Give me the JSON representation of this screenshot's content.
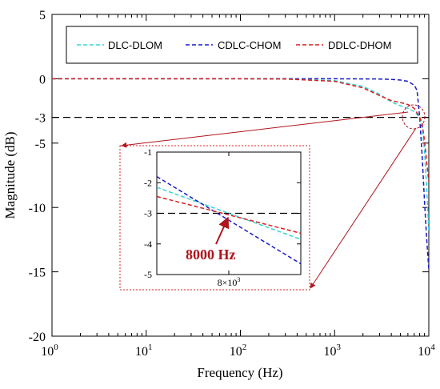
{
  "chart_data": {
    "type": "line",
    "title": "",
    "xlabel": "Frequency (Hz)",
    "ylabel": "Magnitude (dB)",
    "xscale": "log",
    "xlim": [
      1,
      10000
    ],
    "ylim": [
      -20,
      5
    ],
    "x_ticks": [
      1,
      10,
      100,
      1000,
      10000
    ],
    "x_tick_labels": [
      {
        "base": "10",
        "exp": "0"
      },
      {
        "base": "10",
        "exp": "1"
      },
      {
        "base": "10",
        "exp": "2"
      },
      {
        "base": "10",
        "exp": "3"
      },
      {
        "base": "10",
        "exp": "4"
      }
    ],
    "y_ticks": [
      5,
      0,
      -3,
      -5,
      -10,
      -15,
      -20
    ],
    "y_tick_labels": [
      "5",
      "0",
      "-3",
      "-5",
      "-10",
      "-15",
      "-20"
    ],
    "grid": false,
    "legend_position": "top",
    "reference_line": {
      "y": -3,
      "style": "dashed",
      "color": "#000000"
    },
    "series": [
      {
        "name": "DLC-DLOM",
        "color": "#2fd6d6",
        "x": [
          1,
          10,
          100,
          300,
          1000,
          2000,
          3000,
          4000,
          5000,
          6000,
          7000,
          8000,
          8500,
          9000,
          9500,
          10000
        ],
        "y": [
          0,
          0,
          0,
          -0.02,
          -0.15,
          -0.6,
          -1.2,
          -1.8,
          -2.1,
          -2.3,
          -2.55,
          -3.0,
          -3.8,
          -5.5,
          -8.5,
          -11.8
        ]
      },
      {
        "name": "CDLC-CHOM",
        "color": "#1a1ac8",
        "x": [
          1,
          10,
          100,
          1000,
          2000,
          3000,
          4000,
          5000,
          6000,
          7000,
          7500,
          8000,
          8500,
          9000,
          9500,
          10000
        ],
        "y": [
          0,
          0,
          0,
          0,
          -0.01,
          -0.02,
          -0.05,
          -0.1,
          -0.2,
          -0.5,
          -0.9,
          -3.0,
          -6.0,
          -9.5,
          -12.5,
          -14.8
        ]
      },
      {
        "name": "DDLC-DHOM",
        "color": "#d81e1e",
        "x": [
          1,
          10,
          100,
          300,
          1000,
          2000,
          3000,
          4000,
          5000,
          6000,
          7000,
          8000,
          8500,
          9000,
          9500,
          10000
        ],
        "y": [
          0,
          0,
          0,
          -0.02,
          -0.2,
          -0.7,
          -1.3,
          -1.7,
          -1.85,
          -2.0,
          -2.3,
          -3.0,
          -3.5,
          -4.8,
          -6.5,
          -8.0
        ]
      }
    ],
    "inset": {
      "xlabel": {
        "base": "8×10",
        "exp": "3"
      },
      "x_center": 8000,
      "ylim": [
        -5,
        -1
      ],
      "y_ticks": [
        -1,
        -2,
        -3,
        -4,
        -5
      ],
      "y_tick_labels": [
        "-1",
        "-2",
        "-3",
        "-4",
        "-5"
      ],
      "series": [
        {
          "name": "DLC-DLOM",
          "x_rel": [
            -1,
            1
          ],
          "y": [
            -2.15,
            -3.85
          ]
        },
        {
          "name": "CDLC-CHOM",
          "x_rel": [
            -1,
            1
          ],
          "y": [
            -1.8,
            -4.65
          ]
        },
        {
          "name": "DDLC-DHOM",
          "x_rel": [
            -1,
            1
          ],
          "y": [
            -2.45,
            -3.65
          ]
        }
      ],
      "reference_line": {
        "y": -3
      }
    },
    "annotation": {
      "text": "8000 Hz",
      "x": 8000,
      "y": -3
    }
  }
}
